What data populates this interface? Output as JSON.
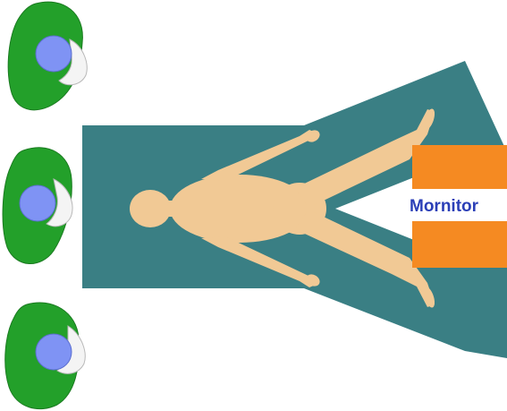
{
  "monitor": {
    "label": "Mornitor"
  },
  "colors": {
    "table": "#3a7f84",
    "patient": "#f1c995",
    "monitor": "#f58a22",
    "monitor_text": "#2b3fb7",
    "staff_body": "#23a02a",
    "staff_arm": "#f4f4f4",
    "staff_head": "#7f93f4"
  },
  "staff": [
    {
      "name": "staff-top"
    },
    {
      "name": "staff-middle"
    },
    {
      "name": "staff-bottom"
    }
  ]
}
